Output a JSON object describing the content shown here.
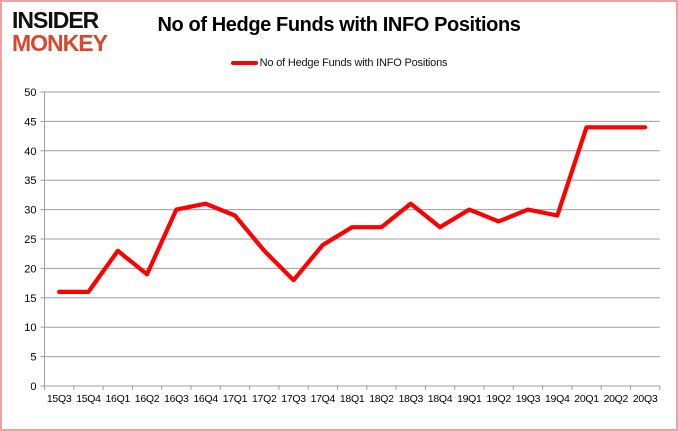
{
  "logo": {
    "line1": "INSIDER",
    "line2": "MONKEY"
  },
  "header": {
    "title": "No of Hedge Funds with INFO Positions"
  },
  "legend": {
    "label": "No of Hedge Funds with INFO Positions",
    "line_color": "#ff0000"
  },
  "colors": {
    "border": "#eda3a3",
    "logo_text": "#111111",
    "logo_accent": "#d9472e",
    "series": "#ff0000",
    "gridline": "#9d9d9d",
    "axis": "#9d9d9d",
    "tick_label": "#000000"
  },
  "chart_data": {
    "type": "line",
    "title": "No of Hedge Funds with INFO Positions",
    "categories": [
      "15Q3",
      "15Q4",
      "16Q1",
      "16Q2",
      "16Q3",
      "16Q4",
      "17Q1",
      "17Q2",
      "17Q3",
      "17Q4",
      "18Q1",
      "18Q2",
      "18Q3",
      "18Q4",
      "19Q1",
      "19Q2",
      "19Q3",
      "19Q4",
      "20Q1",
      "20Q2",
      "20Q3"
    ],
    "series": [
      {
        "name": "No of Hedge Funds with INFO Positions",
        "color": "#ff0000",
        "values": [
          16,
          16,
          23,
          19,
          30,
          31,
          29,
          23,
          18,
          24,
          27,
          27,
          31,
          27,
          30,
          28,
          30,
          29,
          44,
          44,
          44
        ]
      }
    ],
    "xlabel": "",
    "ylabel": "",
    "ylim": [
      0,
      50
    ],
    "ytick_step": 5,
    "yticks": [
      0,
      5,
      10,
      15,
      20,
      25,
      30,
      35,
      40,
      45,
      50
    ],
    "grid": true,
    "legend_position": "top",
    "markers": false
  }
}
